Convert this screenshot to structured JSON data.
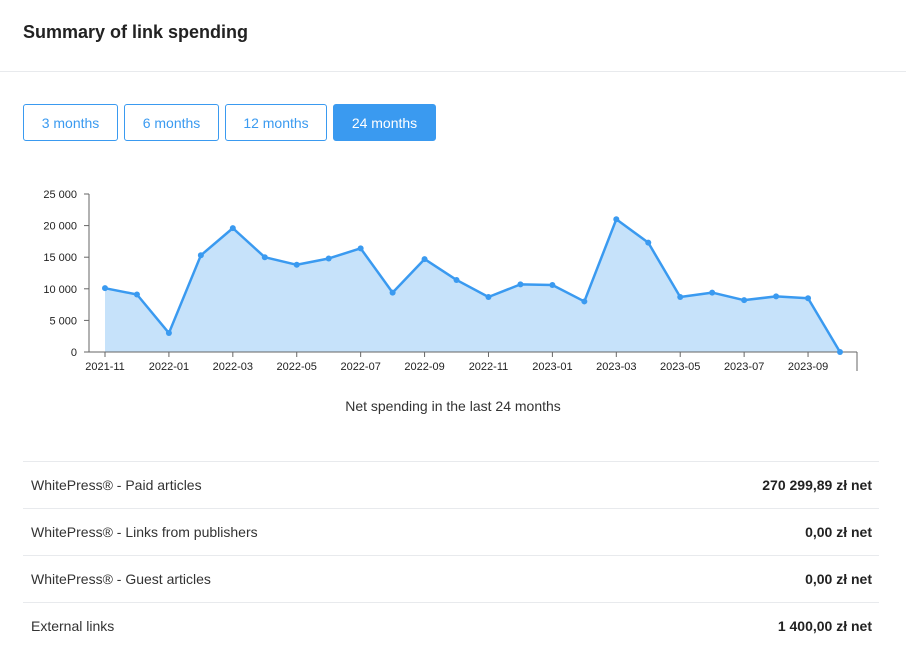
{
  "header": {
    "title": "Summary of link spending"
  },
  "tabs": [
    {
      "label": "3 months",
      "active": false
    },
    {
      "label": "6 months",
      "active": false
    },
    {
      "label": "12 months",
      "active": false
    },
    {
      "label": "24 months",
      "active": true
    }
  ],
  "chart_data": {
    "type": "area",
    "title": "",
    "caption": "Net spending in the last 24 months",
    "xlabel": "",
    "ylabel": "",
    "ylim": [
      0,
      25000
    ],
    "y_ticks": [
      "0",
      "5 000",
      "10 000",
      "15 000",
      "20 000",
      "25 000"
    ],
    "x_ticks": [
      "2021-11",
      "2022-01",
      "2022-03",
      "2022-05",
      "2022-07",
      "2022-09",
      "2022-11",
      "2023-01",
      "2023-03",
      "2023-05",
      "2023-07",
      "2023-09"
    ],
    "x": [
      "2021-11",
      "2021-12",
      "2022-01",
      "2022-02",
      "2022-03",
      "2022-04",
      "2022-05",
      "2022-06",
      "2022-07",
      "2022-08",
      "2022-09",
      "2022-10",
      "2022-11",
      "2022-12",
      "2023-01",
      "2023-02",
      "2023-03",
      "2023-04",
      "2023-05",
      "2023-06",
      "2023-07",
      "2023-08",
      "2023-09",
      "2023-10"
    ],
    "values": [
      10100,
      9100,
      3000,
      15300,
      19600,
      15000,
      13800,
      14800,
      16400,
      9400,
      14700,
      11400,
      8700,
      10700,
      10600,
      8000,
      21000,
      17300,
      8700,
      9400,
      8200,
      8800,
      8500,
      0
    ],
    "color": "#3a9af0",
    "fill_color": "#c6e2fa",
    "grid": false
  },
  "summary": [
    {
      "label": "WhitePress® - Paid articles",
      "value": "270 299,89 zł net"
    },
    {
      "label": "WhitePress® - Links from publishers",
      "value": "0,00 zł net"
    },
    {
      "label": "WhitePress® - Guest articles",
      "value": "0,00 zł net"
    },
    {
      "label": "External links",
      "value": "1 400,00 zł net"
    }
  ]
}
